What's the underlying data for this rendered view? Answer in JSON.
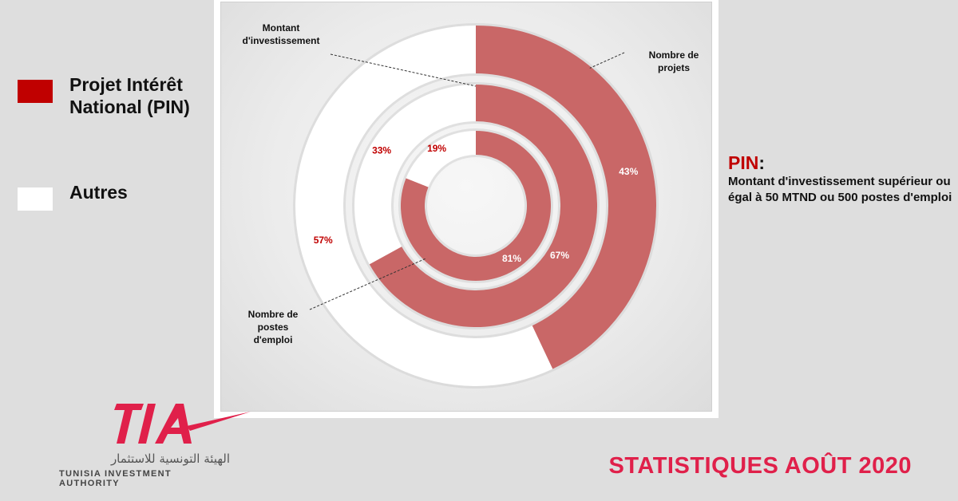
{
  "legend": {
    "items": [
      {
        "label": "Projet Intérêt National (PIN)",
        "color": "#c00000"
      },
      {
        "label": "Autres",
        "color": "#ffffff"
      }
    ]
  },
  "pin_note": {
    "heading": "PIN",
    "colon": ":",
    "description": "Montant d'investissement supérieur ou égal à 50 MTND ou 500 postes d'emploi"
  },
  "logo": {
    "mark": "TIA",
    "arabic": "الهيئة التونسية للاستثمار",
    "english": "TUNISIA INVESTMENT AUTHORITY",
    "color": "#e0204a"
  },
  "footer": {
    "title": "STATISTIQUES AOÛT 2020"
  },
  "colors": {
    "pin_ring": "#c96767",
    "pin_label": "#c00000",
    "autres_ring": "#ffffff",
    "pct_on_pin": "#ffffff"
  },
  "chart_data": {
    "type": "donut",
    "categories": [
      "Projet Intérêt National (PIN)",
      "Autres"
    ],
    "series": [
      {
        "name": "Nombre de projets",
        "values": [
          43,
          57
        ],
        "labels": [
          "43%",
          "57%"
        ]
      },
      {
        "name": "Montant d'investissement",
        "values": [
          67,
          33
        ],
        "labels": [
          "67%",
          "33%"
        ]
      },
      {
        "name": "Nombre de postes d'emploi",
        "values": [
          81,
          19
        ],
        "labels": [
          "81%",
          "19%"
        ]
      }
    ],
    "annotations": [
      {
        "series": 0,
        "text": [
          "Nombre de",
          "projets"
        ]
      },
      {
        "series": 1,
        "text": [
          "Montant",
          "d'investissement"
        ]
      },
      {
        "series": 2,
        "text": [
          "Nombre de",
          "postes",
          "d'emploi"
        ]
      }
    ]
  }
}
